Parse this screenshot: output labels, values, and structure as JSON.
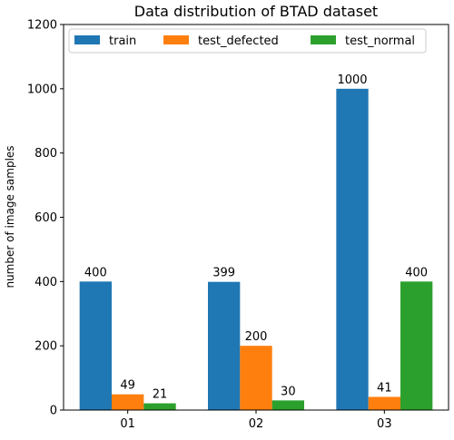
{
  "chart_data": {
    "type": "bar",
    "title": "Data distribution of BTAD dataset",
    "xlabel": "",
    "ylabel": "number of image samples",
    "categories": [
      "01",
      "02",
      "03"
    ],
    "ylim": [
      0,
      1200
    ],
    "yticks": [
      0,
      200,
      400,
      600,
      800,
      1000,
      1200
    ],
    "grid": false,
    "legend_position": "top",
    "series": [
      {
        "name": "train",
        "color": "#1f77b4",
        "values": [
          400,
          399,
          1000
        ]
      },
      {
        "name": "test_defected",
        "color": "#ff7f0e",
        "values": [
          49,
          200,
          41
        ]
      },
      {
        "name": "test_normal",
        "color": "#2ca02c",
        "values": [
          21,
          30,
          400
        ]
      }
    ]
  }
}
